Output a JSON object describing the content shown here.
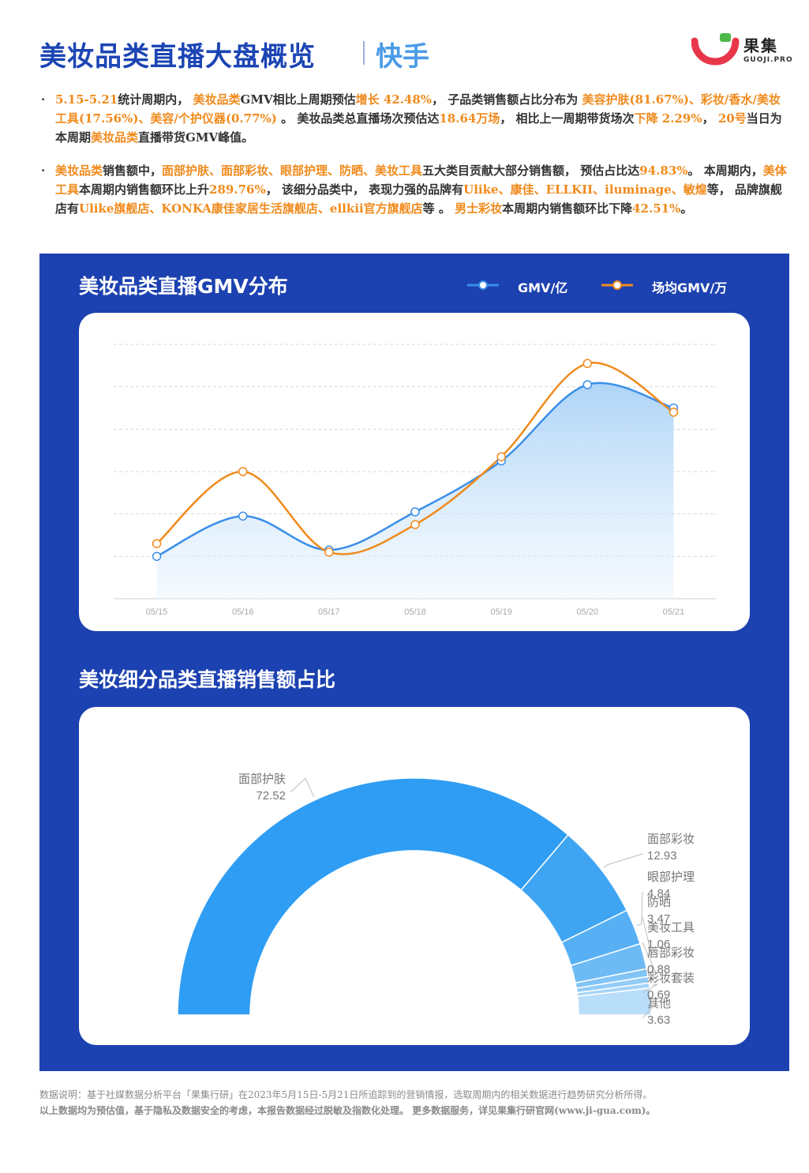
{
  "header": {
    "title": "美妆品类直播大盘概览",
    "platform": "快手",
    "logo_name": "果集",
    "logo_sub": "GUOJI.PRO",
    "accent": "#1c45b4",
    "platform_color": "#4a9be8"
  },
  "bullets": [
    [
      {
        "t": "5.15-5.21",
        "h": true
      },
      {
        "t": "统计周期内， ",
        "h": false
      },
      {
        "t": "美妆品类",
        "h": true
      },
      {
        "t": "GMV相比上周期预估",
        "h": false
      },
      {
        "t": "增长 42.48%",
        "h": true
      },
      {
        "t": "， 子品类销售额占比分布为 ",
        "h": false
      },
      {
        "t": "美容护肤(81.67%)、彩妆/香水/美妆工具(17.56%)、美容/个护仪器(0.77%)",
        "h": true
      },
      {
        "t": " 。 美妆品类总直播场次预估达",
        "h": false
      },
      {
        "t": "18.64万场",
        "h": true
      },
      {
        "t": "， 相比上一周期带货场次",
        "h": false
      },
      {
        "t": "下降 2.29%",
        "h": true
      },
      {
        "t": "， ",
        "h": false
      },
      {
        "t": "20号",
        "h": true
      },
      {
        "t": "当日为本周期",
        "h": false
      },
      {
        "t": "美妆品类",
        "h": true
      },
      {
        "t": "直播带货GMV峰值。",
        "h": false
      }
    ],
    [
      {
        "t": "美妆品类",
        "h": true
      },
      {
        "t": "销售额中，",
        "h": false
      },
      {
        "t": "面部护肤、面部彩妆、眼部护理、防晒、美妆工具",
        "h": true
      },
      {
        "t": "五大类目贡献大部分销售额， 预估占比达",
        "h": false
      },
      {
        "t": "94.83%",
        "h": true
      },
      {
        "t": "。 本周期内，",
        "h": false
      },
      {
        "t": "美体工具",
        "h": true
      },
      {
        "t": "本周期内销售额环比上升",
        "h": false
      },
      {
        "t": "289.76%",
        "h": true
      },
      {
        "t": "， 该细分品类中， 表现力强的品牌有",
        "h": false
      },
      {
        "t": "Ulike、康佳、ELLKII、iluminage、敏煌",
        "h": true
      },
      {
        "t": "等， 品牌旗舰店有",
        "h": false
      },
      {
        "t": "Ulike旗舰店、KONKA康佳家居生活旗舰店、ellkii官方旗舰店",
        "h": true
      },
      {
        "t": "等 。 ",
        "h": false
      },
      {
        "t": "男士彩妆",
        "h": true
      },
      {
        "t": "本周期内销售额环比下降",
        "h": false
      },
      {
        "t": "42.51%",
        "h": true
      },
      {
        "t": "。",
        "h": false
      }
    ]
  ],
  "panel": {
    "chart1_title": "美妆品类直播GMV分布",
    "chart2_title": "美妆细分品类直播销售额占比",
    "background": "#1c41b0"
  },
  "chart_data": [
    {
      "type": "line",
      "title": "美妆品类直播GMV分布",
      "x": [
        "05/15",
        "05/16",
        "05/17",
        "05/18",
        "05/19",
        "05/20",
        "05/21"
      ],
      "ylim": [
        0,
        6
      ],
      "grid": true,
      "legend_position": "top-right",
      "series": [
        {
          "name": "GMV/亿",
          "color": "#3a8ee8",
          "area": true,
          "values": [
            1.0,
            1.95,
            1.15,
            2.05,
            3.25,
            5.05,
            4.5
          ]
        },
        {
          "name": "场均GMV/万",
          "color": "#f08a1c",
          "area": false,
          "values": [
            1.3,
            3.0,
            1.1,
            1.75,
            3.35,
            5.55,
            4.4
          ]
        }
      ]
    },
    {
      "type": "pie",
      "variant": "half-donut",
      "title": "美妆细分品类直播销售额占比",
      "labels": [
        "面部护肤",
        "面部彩妆",
        "眼部护理",
        "防晒",
        "美妆工具",
        "唇部彩妆",
        "彩妆套装",
        "其他"
      ],
      "values": [
        72.52,
        12.93,
        4.84,
        3.47,
        1.06,
        0.88,
        0.69,
        3.63
      ],
      "colors": [
        "#2f9df3",
        "#3fa5f3",
        "#57b0f4",
        "#6dbaf5",
        "#82c4f6",
        "#93ccf7",
        "#a4d4f8",
        "#b9defa"
      ]
    }
  ],
  "footer": {
    "line1": "数据说明：基于社媒数据分析平台「果集行研」在2023年5月15日-5月21日所追踪到的营销情报，选取周期内的相关数据进行趋势研究分析所得。",
    "line2": "以上数据均为预估值，基于隐私及数据安全的考虑，本报告数据经过脱敏及指数化处理。 更多数据服务，详见果集行研官网(www.ji-gua.com)。"
  }
}
